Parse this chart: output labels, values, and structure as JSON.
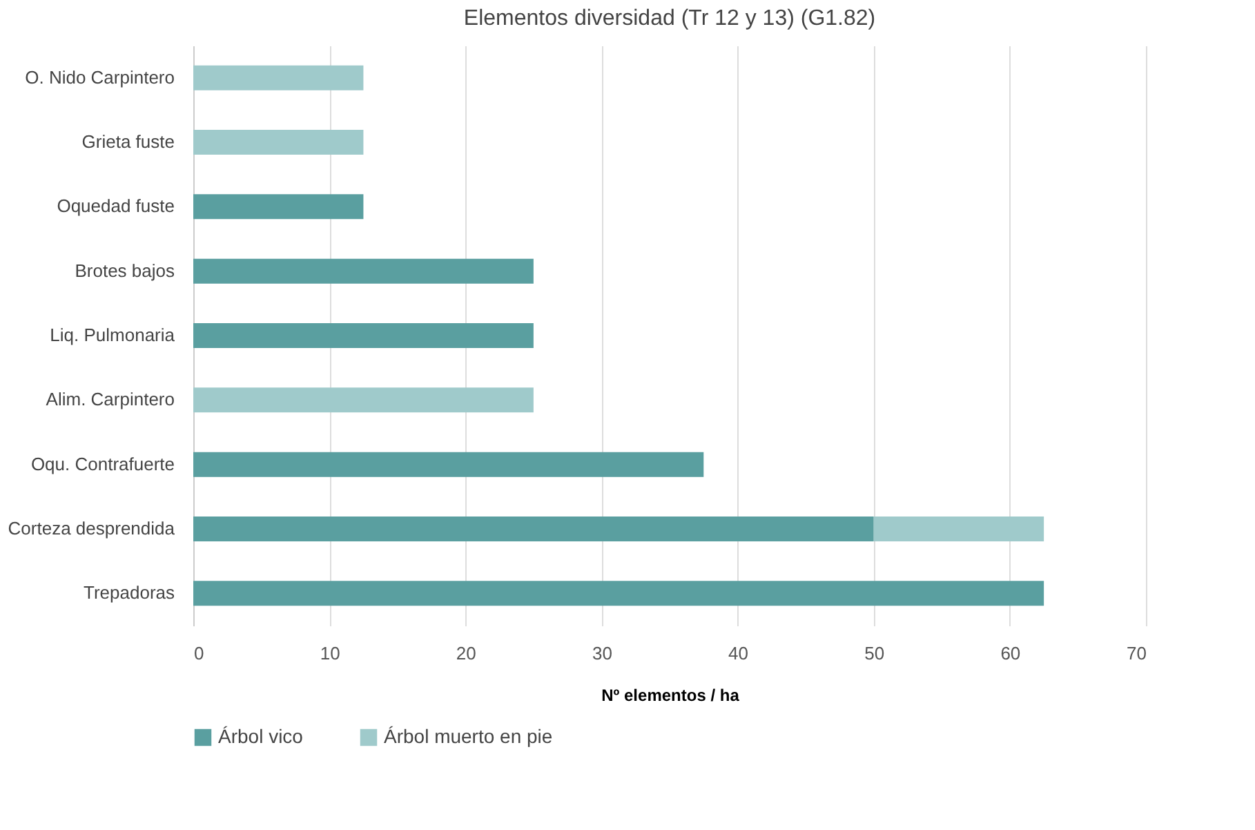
{
  "chart_data": {
    "type": "bar",
    "orientation": "horizontal",
    "stacked": true,
    "title": "Elementos diversidad (Tr 12 y 13) (G1.82)",
    "xlabel": "Nº elementos / ha",
    "categories": [
      "O. Nido Carpintero",
      "Grieta fuste",
      "Oquedad fuste",
      "Brotes bajos",
      "Liq. Pulmonaria",
      "Alim. Carpintero",
      "Oqu. Contrafuerte",
      "Corteza desprendida",
      "Trepadoras"
    ],
    "series": [
      {
        "name": "Árbol vico",
        "color": "#5a9fa0",
        "values": [
          null,
          null,
          12.5,
          25,
          25,
          null,
          37.5,
          50,
          62.5
        ]
      },
      {
        "name": "Árbol muerto en pie",
        "color": "#9fcacb",
        "values": [
          12.5,
          12.5,
          null,
          null,
          null,
          25,
          null,
          12.5,
          null
        ]
      }
    ],
    "xlim": [
      0,
      70
    ],
    "xticks": [
      0,
      10,
      20,
      30,
      40,
      50,
      60,
      70
    ],
    "grid": "x",
    "legend": "bottom"
  }
}
